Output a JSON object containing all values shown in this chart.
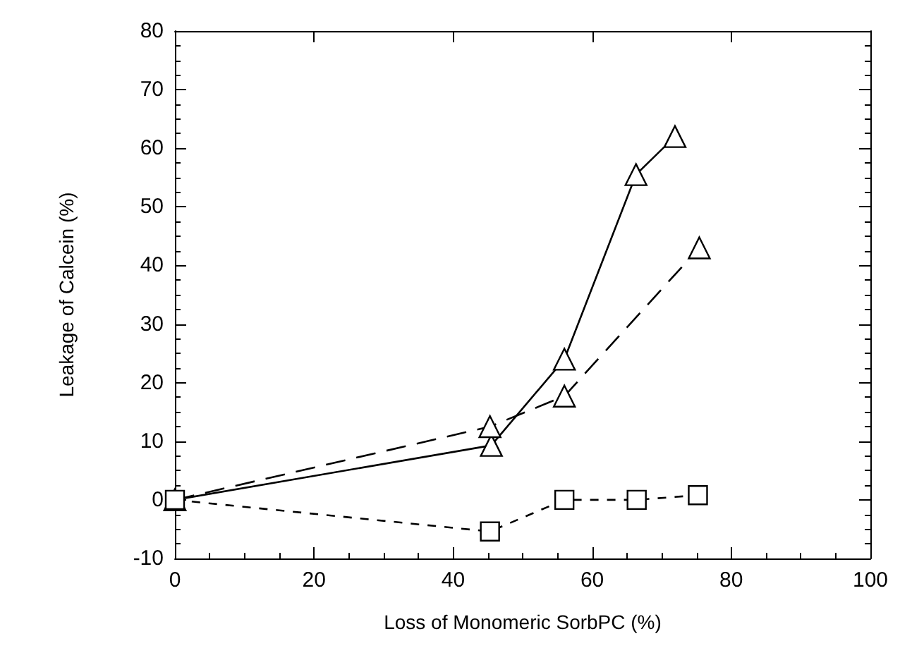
{
  "chart_data": {
    "type": "line",
    "xlabel": "Loss of Monomeric SorbPC (%)",
    "ylabel": "Leakage of Calcein (%)",
    "xlim": [
      0,
      100
    ],
    "xticks": [
      0,
      20,
      40,
      60,
      80,
      100
    ],
    "ylim": [
      -10,
      80
    ],
    "yticks": [
      -10,
      0,
      10,
      20,
      30,
      40,
      50,
      60,
      70,
      80
    ],
    "grid": false,
    "series": [
      {
        "x": [
          0,
          45.5,
          56,
          66.3,
          71.9
        ],
        "values": [
          0,
          9.3,
          24,
          55.5,
          62
        ],
        "color": "#000000",
        "marker": "triangle",
        "line_style": "solid"
      },
      {
        "x": [
          0,
          45.3,
          56,
          75.4
        ],
        "values": [
          0,
          12.5,
          17.7,
          43
        ],
        "color": "#000000",
        "marker": "triangle",
        "line_style": "dashed"
      },
      {
        "x": [
          0,
          45.3,
          56,
          66.4,
          75.2
        ],
        "values": [
          0,
          -5.4,
          0,
          0,
          0.8
        ],
        "color": "#000000",
        "marker": "square",
        "line_style": "dotted"
      }
    ]
  }
}
